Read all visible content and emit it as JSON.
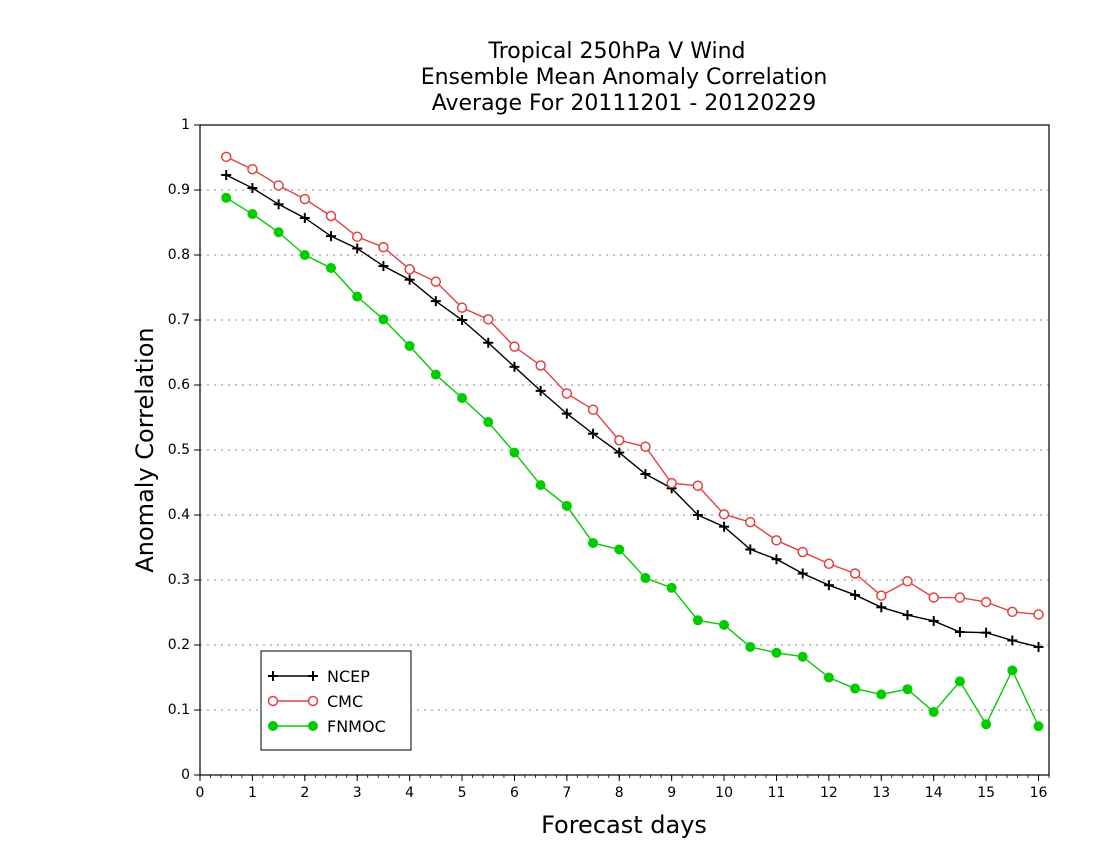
{
  "chart_data": {
    "type": "line",
    "title": [
      "Tropical 250hPa V Wind",
      "Ensemble Mean Anomaly Correlation",
      "Average For 20111201 - 20120229"
    ],
    "xlabel": "Forecast days",
    "ylabel": "Anomaly Correlation",
    "xlim": [
      0,
      16.2
    ],
    "ylim": [
      0,
      1
    ],
    "xticks": [
      0,
      1,
      2,
      3,
      4,
      5,
      6,
      7,
      8,
      9,
      10,
      11,
      12,
      13,
      14,
      15,
      16
    ],
    "yticks": [
      0,
      0.1,
      0.2,
      0.3,
      0.4,
      0.5,
      0.6,
      0.7,
      0.8,
      0.9,
      1
    ],
    "ytick_labels": [
      "0",
      "0.1",
      "0.2",
      "0.3",
      "0.4",
      "0.5",
      "0.6",
      "0.7",
      "0.8",
      "0.9",
      "1"
    ],
    "grid": "horizontal dotted",
    "legend_position": "bottom-left",
    "x": [
      0.5,
      1,
      1.5,
      2,
      2.5,
      3,
      3.5,
      4,
      4.5,
      5,
      5.5,
      6,
      6.5,
      7,
      7.5,
      8,
      8.5,
      9,
      9.5,
      10,
      10.5,
      11,
      11.5,
      12,
      12.5,
      13,
      13.5,
      14,
      14.5,
      15,
      15.5,
      16
    ],
    "series": [
      {
        "name": "NCEP",
        "color": "#000000",
        "marker": "plus",
        "values": [
          0.923,
          0.903,
          0.878,
          0.857,
          0.829,
          0.81,
          0.783,
          0.762,
          0.729,
          0.7,
          0.665,
          0.628,
          0.591,
          0.556,
          0.525,
          0.496,
          0.463,
          0.441,
          0.4,
          0.382,
          0.347,
          0.332,
          0.31,
          0.292,
          0.277,
          0.258,
          0.246,
          0.237,
          0.22,
          0.219,
          0.207,
          0.197
        ]
      },
      {
        "name": "CMC",
        "color": "#e34040",
        "marker": "open-circle",
        "values": [
          0.951,
          0.932,
          0.907,
          0.886,
          0.86,
          0.828,
          0.812,
          0.778,
          0.759,
          0.719,
          0.701,
          0.659,
          0.63,
          0.587,
          0.562,
          0.515,
          0.505,
          0.449,
          0.445,
          0.401,
          0.389,
          0.361,
          0.343,
          0.325,
          0.31,
          0.276,
          0.298,
          0.273,
          0.273,
          0.266,
          0.251,
          0.247
        ]
      },
      {
        "name": "FNMOC",
        "color": "#00cc00",
        "marker": "filled-circle",
        "values": [
          0.888,
          0.863,
          0.835,
          0.8,
          0.78,
          0.736,
          0.701,
          0.66,
          0.616,
          0.58,
          0.543,
          0.496,
          0.446,
          0.414,
          0.357,
          0.347,
          0.303,
          0.288,
          0.238,
          0.231,
          0.197,
          0.188,
          0.182,
          0.15,
          0.133,
          0.124,
          0.132,
          0.097,
          0.144,
          0.078,
          0.161,
          0.075
        ]
      }
    ]
  }
}
